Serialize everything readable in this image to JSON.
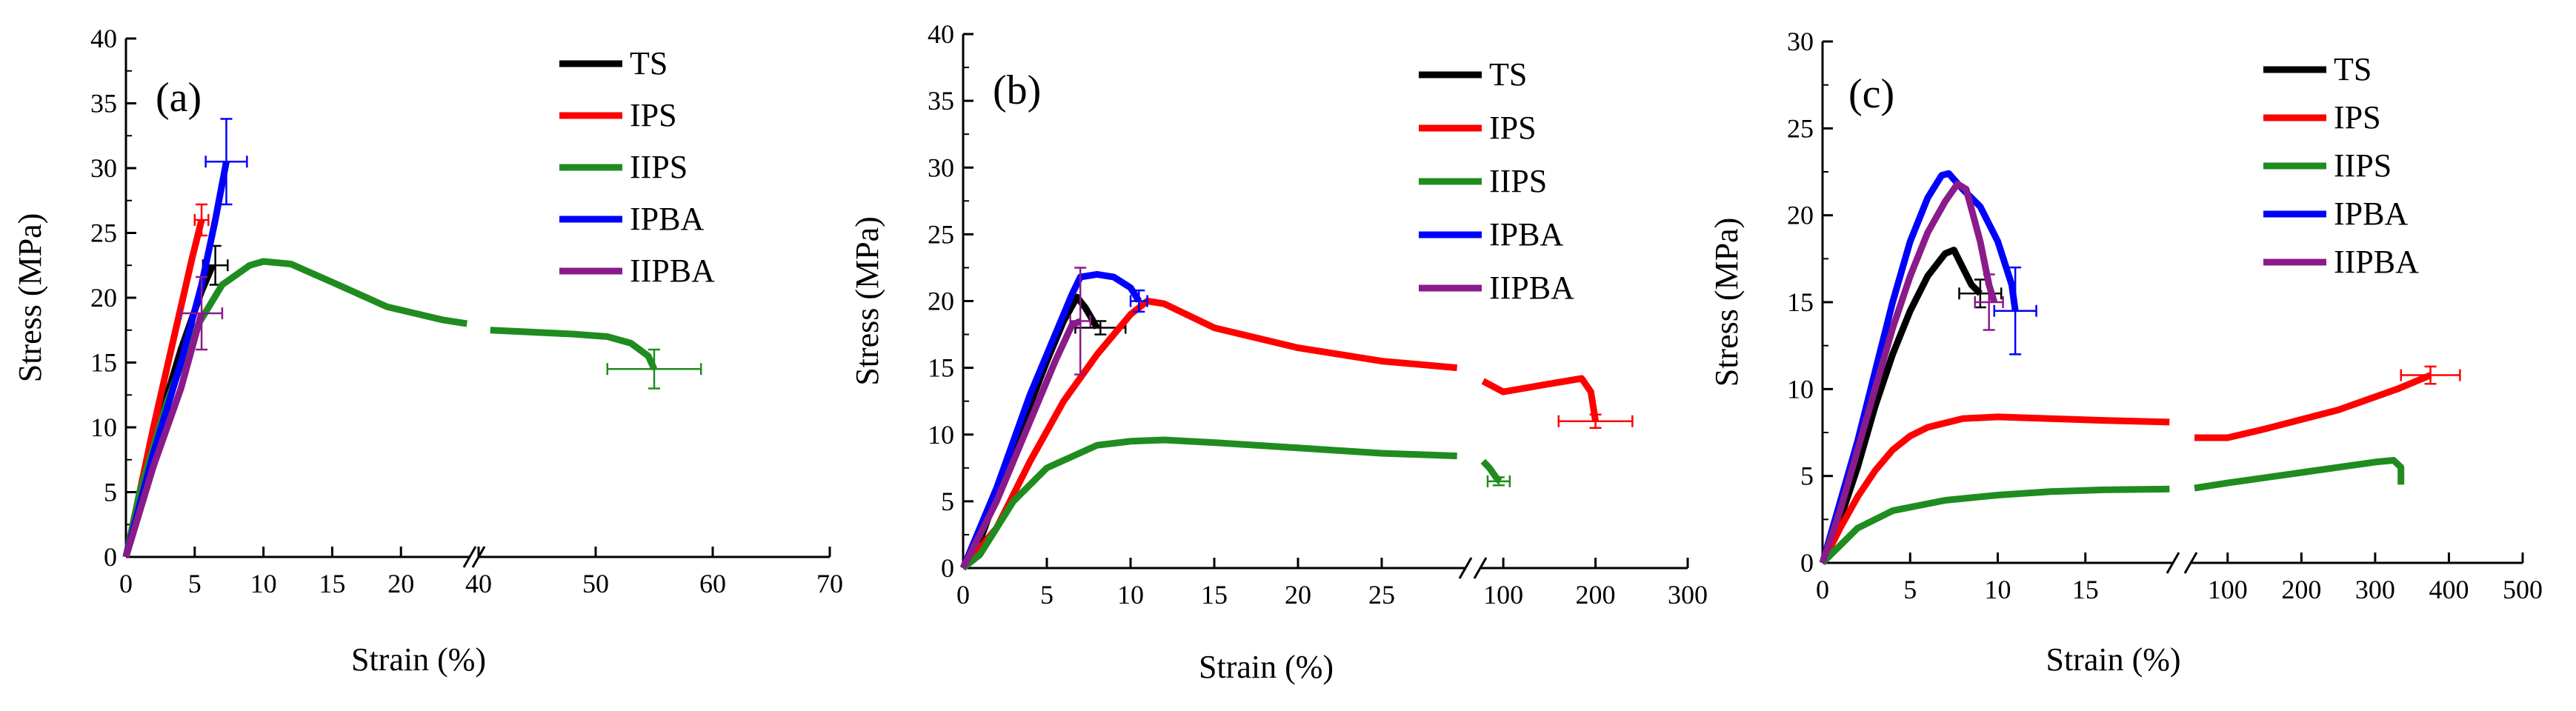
{
  "colors": {
    "TS": "#000000",
    "IPS": "#ff0000",
    "IIPS": "#1f8c1f",
    "IPBA": "#0000ff",
    "IIPBA": "#8b1a8b"
  },
  "chart_data": [
    {
      "type": "line",
      "panel_label": "(a)",
      "xlabel": "Strain (%)",
      "ylabel": "Stress (MPa)",
      "ylim": [
        0,
        40
      ],
      "yticks": [
        "0",
        "5",
        "10",
        "15",
        "20",
        "25",
        "30",
        "35",
        "40"
      ],
      "x_segments": [
        {
          "range": [
            0,
            25
          ],
          "ticks": [
            "0",
            "5",
            "10",
            "15",
            "20"
          ]
        },
        {
          "range": [
            40,
            70
          ],
          "ticks": [
            "40",
            "50",
            "60",
            "70"
          ]
        }
      ],
      "series": [
        {
          "name": "TS",
          "points": [
            [
              0,
              0
            ],
            [
              2,
              9
            ],
            [
              4,
              16
            ],
            [
              5.5,
              20.5
            ],
            [
              6.3,
              22.5
            ]
          ],
          "error": {
            "x": 6.5,
            "y": 22.5,
            "xerr": 0.9,
            "yerr": 1.5
          }
        },
        {
          "name": "IPS",
          "points": [
            [
              0,
              0
            ],
            [
              2,
              10
            ],
            [
              3.5,
              17
            ],
            [
              4.8,
              23
            ],
            [
              5.5,
              26
            ]
          ],
          "error": {
            "x": 5.5,
            "y": 26,
            "xerr": 0.5,
            "yerr": 1.2
          }
        },
        {
          "name": "IIPS",
          "points": [
            [
              0,
              0
            ],
            [
              1,
              5
            ],
            [
              3,
              12
            ],
            [
              5,
              17.5
            ],
            [
              7,
              21
            ],
            [
              9,
              22.5
            ],
            [
              10,
              22.8
            ],
            [
              12,
              22.6
            ],
            [
              15,
              21.2
            ],
            [
              19,
              19.3
            ],
            [
              23,
              18.3
            ],
            [
              24.8,
              18
            ],
            [
              41,
              17.5
            ],
            [
              48,
              17.2
            ],
            [
              51,
              17
            ],
            [
              53,
              16.5
            ],
            [
              54.5,
              15.5
            ],
            [
              55,
              14.5
            ]
          ],
          "error": {
            "x": 55,
            "y": 14.5,
            "xerr": 4,
            "yerr": 1.5
          }
        },
        {
          "name": "IPBA",
          "points": [
            [
              0,
              0
            ],
            [
              2,
              8
            ],
            [
              4,
              15
            ],
            [
              5.5,
              21
            ],
            [
              6.5,
              26
            ],
            [
              7.3,
              30.5
            ]
          ],
          "error": {
            "x": 7.3,
            "y": 30.5,
            "xerr": 1.5,
            "yerr": 3.3
          }
        },
        {
          "name": "IIPBA",
          "points": [
            [
              0,
              0
            ],
            [
              2,
              7
            ],
            [
              4,
              13
            ],
            [
              5.5,
              18.8
            ]
          ],
          "error": {
            "x": 5.5,
            "y": 18.8,
            "xerr": 1.5,
            "yerr": 2.8
          }
        }
      ],
      "legend": [
        "TS",
        "IPS",
        "IIPS",
        "IPBA",
        "IIPBA"
      ]
    },
    {
      "type": "line",
      "panel_label": "(b)",
      "xlabel": "Strain (%)",
      "ylabel": "Stress (MPa)",
      "ylim": [
        0,
        40
      ],
      "yticks": [
        "0",
        "5",
        "10",
        "15",
        "20",
        "25",
        "30",
        "35",
        "40"
      ],
      "x_segments": [
        {
          "range": [
            0,
            30
          ],
          "ticks": [
            "0",
            "5",
            "10",
            "15",
            "20",
            "25"
          ]
        },
        {
          "range": [
            75,
            300
          ],
          "ticks": [
            "100",
            "200",
            "300"
          ]
        }
      ],
      "series": [
        {
          "name": "TS",
          "points": [
            [
              0,
              0
            ],
            [
              1,
              2
            ],
            [
              3,
              9
            ],
            [
              5,
              15.5
            ],
            [
              6,
              18.5
            ],
            [
              6.8,
              20.3
            ],
            [
              7.3,
              19.5
            ],
            [
              8,
              18
            ]
          ],
          "error": {
            "x": 8.2,
            "y": 18,
            "xerr": 1.5,
            "yerr": 0.5
          }
        },
        {
          "name": "IPS",
          "points": [
            [
              0,
              0
            ],
            [
              2,
              3
            ],
            [
              4,
              8
            ],
            [
              6,
              12.5
            ],
            [
              8,
              16
            ],
            [
              10,
              19
            ],
            [
              11,
              20
            ],
            [
              12,
              19.8
            ],
            [
              15,
              18
            ],
            [
              20,
              16.5
            ],
            [
              25,
              15.5
            ],
            [
              29.5,
              15
            ],
            [
              78,
              14
            ],
            [
              100,
              13.2
            ],
            [
              150,
              13.8
            ],
            [
              185,
              14.2
            ],
            [
              195,
              13.2
            ],
            [
              200,
              11
            ]
          ],
          "error": {
            "x": 200,
            "y": 11,
            "xerr": 40,
            "yerr": 0.5
          }
        },
        {
          "name": "IIPS",
          "points": [
            [
              0,
              0
            ],
            [
              1,
              1
            ],
            [
              3,
              5
            ],
            [
              5,
              7.5
            ],
            [
              8,
              9.2
            ],
            [
              10,
              9.5
            ],
            [
              12,
              9.6
            ],
            [
              15,
              9.4
            ],
            [
              20,
              9
            ],
            [
              25,
              8.6
            ],
            [
              29.5,
              8.4
            ],
            [
              78,
              8
            ],
            [
              85,
              7.5
            ],
            [
              92,
              6.8
            ],
            [
              96,
              6.5
            ]
          ],
          "error": {
            "x": 95,
            "y": 6.5,
            "xerr": 12,
            "yerr": 0.3
          }
        },
        {
          "name": "IPBA",
          "points": [
            [
              0,
              0
            ],
            [
              2,
              6
            ],
            [
              4,
              13
            ],
            [
              5.5,
              17.5
            ],
            [
              6.5,
              20.5
            ],
            [
              7,
              21.8
            ],
            [
              8,
              22
            ],
            [
              9,
              21.8
            ],
            [
              10,
              21
            ],
            [
              10.5,
              20
            ]
          ],
          "error": {
            "x": 10.5,
            "y": 20,
            "xerr": 0.5,
            "yerr": 0.8
          }
        },
        {
          "name": "IIPBA",
          "points": [
            [
              0,
              0
            ],
            [
              2,
              5
            ],
            [
              4,
              11
            ],
            [
              5.5,
              15.5
            ],
            [
              6.5,
              18.2
            ],
            [
              7,
              18.5
            ]
          ],
          "error": {
            "x": 7,
            "y": 18.5,
            "xerr": 0.6,
            "yerr": 4
          }
        }
      ],
      "legend": [
        "TS",
        "IPS",
        "IIPS",
        "IPBA",
        "IIPBA"
      ]
    },
    {
      "type": "line",
      "panel_label": "(c)",
      "xlabel": "Strain (%)",
      "ylabel": "Stress (MPa)",
      "ylim": [
        0,
        30
      ],
      "yticks": [
        "0",
        "5",
        "10",
        "15",
        "20",
        "25",
        "30"
      ],
      "x_segments": [
        {
          "range": [
            0,
            20
          ],
          "ticks": [
            "0",
            "5",
            "10",
            "15"
          ]
        },
        {
          "range": [
            50,
            500
          ],
          "ticks": [
            "100",
            "200",
            "300",
            "400",
            "500"
          ]
        }
      ],
      "series": [
        {
          "name": "TS",
          "points": [
            [
              0,
              0
            ],
            [
              1,
              2.5
            ],
            [
              2,
              5.5
            ],
            [
              3,
              9
            ],
            [
              4,
              12
            ],
            [
              5,
              14.5
            ],
            [
              6,
              16.5
            ],
            [
              7,
              17.8
            ],
            [
              7.5,
              18
            ],
            [
              8,
              17
            ],
            [
              8.5,
              16
            ],
            [
              9,
              15.5
            ]
          ],
          "error": {
            "x": 9,
            "y": 15.5,
            "xerr": 1.2,
            "yerr": 0.8
          }
        },
        {
          "name": "IPS",
          "points": [
            [
              0,
              0
            ],
            [
              1,
              2
            ],
            [
              2,
              3.8
            ],
            [
              3,
              5.3
            ],
            [
              4,
              6.5
            ],
            [
              5,
              7.3
            ],
            [
              6,
              7.8
            ],
            [
              8,
              8.3
            ],
            [
              10,
              8.4
            ],
            [
              13,
              8.3
            ],
            [
              16,
              8.2
            ],
            [
              19.8,
              8.1
            ],
            [
              55,
              7.2
            ],
            [
              100,
              7.2
            ],
            [
              150,
              7.7
            ],
            [
              250,
              8.8
            ],
            [
              330,
              10
            ],
            [
              375,
              10.8
            ]
          ],
          "error": {
            "x": 375,
            "y": 10.8,
            "xerr": 40,
            "yerr": 0.5
          }
        },
        {
          "name": "IIPS",
          "points": [
            [
              0,
              0
            ],
            [
              1,
              1
            ],
            [
              2,
              2
            ],
            [
              4,
              3
            ],
            [
              7,
              3.6
            ],
            [
              10,
              3.9
            ],
            [
              13,
              4.1
            ],
            [
              16,
              4.2
            ],
            [
              19.8,
              4.25
            ],
            [
              55,
              4.3
            ],
            [
              100,
              4.6
            ],
            [
              200,
              5.2
            ],
            [
              300,
              5.8
            ],
            [
              325,
              5.9
            ],
            [
              335,
              5.5
            ],
            [
              335,
              4.5
            ]
          ],
          "error": null
        },
        {
          "name": "IPBA",
          "points": [
            [
              0,
              0
            ],
            [
              1,
              3.5
            ],
            [
              2,
              7
            ],
            [
              3,
              11
            ],
            [
              4,
              15
            ],
            [
              5,
              18.5
            ],
            [
              6,
              21
            ],
            [
              6.8,
              22.3
            ],
            [
              7.2,
              22.4
            ],
            [
              8,
              21.5
            ],
            [
              9,
              20.5
            ],
            [
              10,
              18.5
            ],
            [
              10.8,
              16
            ],
            [
              11,
              14.5
            ]
          ],
          "error": {
            "x": 11,
            "y": 14.5,
            "xerr": 1.2,
            "yerr": 2.5
          }
        },
        {
          "name": "IIPBA",
          "points": [
            [
              0,
              0
            ],
            [
              1,
              3
            ],
            [
              2,
              6.5
            ],
            [
              3,
              10
            ],
            [
              4,
              13.5
            ],
            [
              5,
              16.5
            ],
            [
              6,
              19
            ],
            [
              7,
              20.8
            ],
            [
              7.7,
              21.8
            ],
            [
              8.2,
              21.5
            ],
            [
              9,
              18.5
            ],
            [
              9.5,
              16
            ],
            [
              9.8,
              15
            ]
          ],
          "error": {
            "x": 9.5,
            "y": 15,
            "xerr": 0.8,
            "yerr": 1.6
          }
        }
      ],
      "legend": [
        "TS",
        "IPS",
        "IIPS",
        "IPBA",
        "IIPBA"
      ]
    }
  ]
}
